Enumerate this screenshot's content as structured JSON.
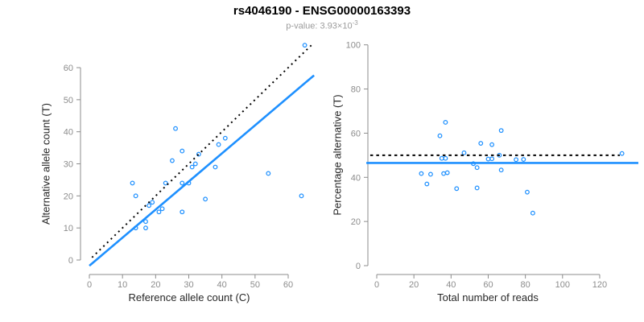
{
  "header": {
    "title": "rs4046190 - ENSG00000163393",
    "subtitle_label": "p-value: ",
    "subtitle_value": "3.93×10",
    "subtitle_exponent": "-3"
  },
  "colors": {
    "points": "#1E90FF",
    "fit_line": "#1E90FF",
    "reference_line": "#000000",
    "axis": "#8c8c8c",
    "axis_title": "#262626",
    "title": "#000000",
    "subtitle": "#9c9c9c"
  },
  "chart_data": [
    {
      "id": "allele-counts",
      "type": "scatter",
      "xlabel": "Reference allele count (C)",
      "ylabel": "Alternative allele count (T)",
      "xlim": [
        0,
        60
      ],
      "ylim": [
        0,
        60
      ],
      "xticks": [
        0,
        10,
        20,
        30,
        40,
        50,
        60
      ],
      "yticks": [
        0,
        10,
        20,
        30,
        40,
        50,
        60
      ],
      "grid": false,
      "legend": "none",
      "points": [
        [
          13,
          24
        ],
        [
          14,
          20
        ],
        [
          14,
          10
        ],
        [
          17,
          12
        ],
        [
          17,
          10
        ],
        [
          18,
          17
        ],
        [
          19,
          18
        ],
        [
          21,
          15
        ],
        [
          22,
          16
        ],
        [
          23,
          24
        ],
        [
          25,
          31
        ],
        [
          26,
          41
        ],
        [
          28,
          15
        ],
        [
          28,
          24
        ],
        [
          28,
          34
        ],
        [
          30,
          24
        ],
        [
          31,
          29
        ],
        [
          32,
          30
        ],
        [
          33,
          33
        ],
        [
          35,
          19
        ],
        [
          38,
          29
        ],
        [
          39,
          36
        ],
        [
          41,
          38
        ],
        [
          54,
          27
        ],
        [
          64,
          20
        ],
        [
          65,
          67
        ]
      ],
      "lines": [
        {
          "name": "identity-reference-line",
          "style": "dotted",
          "color": "#000000",
          "width": 2,
          "dash": "2 4.5",
          "x1": 0.8,
          "y1": 0.8,
          "x2": 67.2,
          "y2": 67.2
        },
        {
          "name": "fit-line",
          "style": "solid",
          "color": "#1E90FF",
          "width": 2.6,
          "dash": "",
          "x1": 0,
          "y1": -1.8,
          "x2": 67.8,
          "y2": 57.6
        }
      ]
    },
    {
      "id": "percentage-vs-reads",
      "type": "scatter",
      "xlabel": "Total number of reads",
      "ylabel": "Percentage alternative (T)",
      "xlim": [
        0,
        120
      ],
      "ylim": [
        0,
        100
      ],
      "xticks": [
        0,
        20,
        40,
        60,
        80,
        100,
        120
      ],
      "yticks": [
        0,
        20,
        40,
        60,
        80,
        100
      ],
      "grid": false,
      "legend": "none",
      "points": [
        [
          37,
          64.9
        ],
        [
          34,
          58.8
        ],
        [
          24,
          41.7
        ],
        [
          29,
          41.4
        ],
        [
          27,
          37.0
        ],
        [
          35,
          48.6
        ],
        [
          37,
          48.6
        ],
        [
          36,
          41.7
        ],
        [
          38,
          42.1
        ],
        [
          47,
          51.1
        ],
        [
          56,
          55.4
        ],
        [
          67,
          61.2
        ],
        [
          43,
          34.9
        ],
        [
          52,
          46.2
        ],
        [
          62,
          54.8
        ],
        [
          54,
          44.4
        ],
        [
          60,
          48.3
        ],
        [
          62,
          48.4
        ],
        [
          66,
          50.0
        ],
        [
          54,
          35.2
        ],
        [
          67,
          43.3
        ],
        [
          75,
          48.0
        ],
        [
          79,
          48.1
        ],
        [
          81,
          33.3
        ],
        [
          84,
          23.8
        ],
        [
          132,
          50.8
        ]
      ],
      "lines": [
        {
          "name": "null-reference-line",
          "style": "dotted",
          "color": "#000000",
          "width": 2,
          "dash": "3.5 4",
          "x1": -3.5,
          "y1": 50,
          "x2": 130.8,
          "y2": 50
        },
        {
          "name": "fit-line",
          "style": "solid",
          "color": "#1E90FF",
          "width": 2.6,
          "dash": "",
          "x1": -5.6,
          "y1": 46.5,
          "x2": 140.8,
          "y2": 46.5
        }
      ]
    }
  ]
}
